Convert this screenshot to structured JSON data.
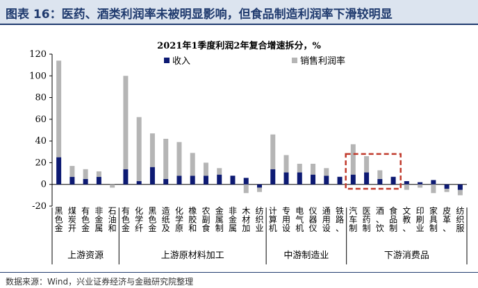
{
  "header": {
    "title": "图表 16：医药、酒类利润率未被明显影响，但食品制造利润率下滑较明显"
  },
  "footer": {
    "source": "数据来源：Wind，兴业证券经济与金融研究院整理"
  },
  "colors": {
    "revenue": "#0d1a73",
    "margin": "#b5b5b5",
    "highlight_box": "#c0392b",
    "header_bg": "#dce4ef",
    "title_text": "#1f3a6e"
  },
  "chart_data": {
    "type": "bar",
    "stacked": true,
    "title": "2021年1季度利润2年复合增速拆分，%",
    "legend_position": "top-center",
    "ylim": [
      -20,
      120
    ],
    "yticks": [
      -20,
      0,
      20,
      40,
      60,
      80,
      100,
      120
    ],
    "categories": [
      "黑色金",
      "煤炭开",
      "有色金",
      "非金属",
      "石油和",
      "有色金",
      "化学纤",
      "黑色金",
      "造纸及",
      "化学原",
      "橡胶和",
      "农副食",
      "金属制",
      "非金属",
      "木材加",
      "纺织业",
      "计算机",
      "专用设",
      "电气机",
      "仪器仪",
      "通用设",
      "铁路、",
      "汽车制",
      "医药制",
      "酒、饮",
      "食品制",
      "文教、",
      "印刷业",
      "家具制",
      "皮革、",
      "纺织服"
    ],
    "series": [
      {
        "name": "收入",
        "values": [
          25,
          7,
          5,
          7,
          0,
          14,
          3,
          16,
          5,
          8,
          8,
          8,
          9,
          8,
          6,
          -3,
          14,
          11,
          11,
          9,
          8,
          7,
          9,
          11,
          5,
          7,
          3,
          2,
          4,
          -4,
          -5
        ]
      },
      {
        "name": "销售利润率",
        "values": [
          89,
          10,
          9,
          5,
          -3,
          86,
          59,
          31,
          37,
          31,
          21,
          12,
          6,
          0,
          -8,
          -4,
          32,
          16,
          8,
          10,
          7,
          0,
          28,
          15,
          8,
          0,
          -5,
          -3,
          -8,
          -3,
          -5
        ]
      }
    ],
    "groups": [
      {
        "label": "上游资源",
        "start": 0,
        "end": 4
      },
      {
        "label": "上游原材料加工",
        "start": 5,
        "end": 15
      },
      {
        "label": "中游制造业",
        "start": 16,
        "end": 21
      },
      {
        "label": "下游消费品",
        "start": 22,
        "end": 30
      }
    ],
    "highlight": {
      "start": 22,
      "end": 25
    }
  }
}
